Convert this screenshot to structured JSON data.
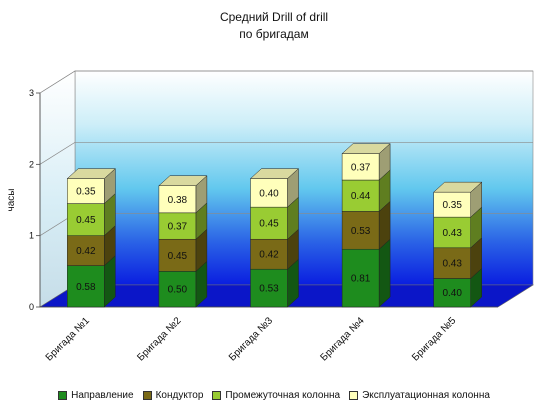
{
  "chart_data": {
    "type": "bar",
    "stacked": true,
    "three_d": true,
    "title_line1": "Средний Drill of drill",
    "title_line2": "по бригадам",
    "ylabel": "часы",
    "xlabel": "",
    "ylim": [
      0,
      3
    ],
    "yticks": [
      "0",
      "1",
      "2",
      "3"
    ],
    "grid": true,
    "legend_position": "bottom",
    "categories": [
      "Бригада №1",
      "Бригада №2",
      "Бригада №3",
      "Бригада №4",
      "Бригада №5"
    ],
    "series": [
      {
        "name": "Направление",
        "color": "#1e8c1e",
        "values": [
          0.58,
          0.5,
          0.53,
          0.81,
          0.4
        ],
        "labels": [
          "0.58",
          "0.50",
          "0.53",
          "0.81",
          "0.40"
        ]
      },
      {
        "name": "Кондуктор",
        "color": "#7a6a17",
        "values": [
          0.42,
          0.45,
          0.42,
          0.53,
          0.43
        ],
        "labels": [
          "0.42",
          "0.45",
          "0.42",
          "0.53",
          "0.43"
        ]
      },
      {
        "name": "Промежуточная колонна",
        "color": "#99cc33",
        "values": [
          0.45,
          0.37,
          0.45,
          0.44,
          0.43
        ],
        "labels": [
          "0.45",
          "0.37",
          "0.45",
          "0.44",
          "0.43"
        ]
      },
      {
        "name": "Эксплуатационная колонна",
        "color": "#ffffbb",
        "values": [
          0.35,
          0.38,
          0.4,
          0.37,
          0.35
        ],
        "labels": [
          "0.35",
          "0.38",
          "0.40",
          "0.37",
          "0.35"
        ]
      }
    ]
  }
}
